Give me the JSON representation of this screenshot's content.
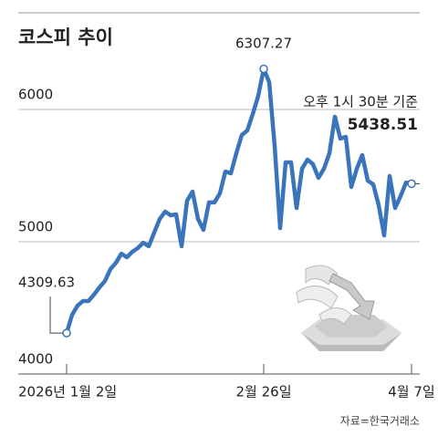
{
  "chart_data": {
    "type": "line",
    "title": "코스피 추이",
    "categories": [
      "2026년 1월 2일",
      null,
      null,
      null,
      null,
      null,
      null,
      null,
      null,
      null,
      null,
      null,
      null,
      null,
      null,
      null,
      null,
      null,
      null,
      null,
      null,
      null,
      null,
      null,
      null,
      null,
      null,
      null,
      null,
      null,
      null,
      null,
      null,
      null,
      null,
      null,
      "2월 26일",
      null,
      null,
      null,
      null,
      null,
      null,
      null,
      null,
      null,
      null,
      null,
      null,
      null,
      null,
      null,
      null,
      null,
      null,
      null,
      null,
      null,
      null,
      null,
      null,
      null,
      null,
      "4월 7일"
    ],
    "values": [
      4309.63,
      4448,
      4517,
      4552,
      4552,
      4600,
      4655,
      4703,
      4793,
      4841,
      4910,
      4883,
      4924,
      4952,
      4993,
      4966,
      5069,
      5172,
      5228,
      5200,
      5207,
      4966,
      5310,
      5379,
      5172,
      5090,
      5297,
      5297,
      5366,
      5531,
      5517,
      5669,
      5807,
      5841,
      5966,
      6103,
      6307.27,
      6207,
      5724,
      5103,
      5600,
      5600,
      5255,
      5552,
      5621,
      5586,
      5483,
      5552,
      5669,
      5945,
      5779,
      5793,
      5414,
      5552,
      5655,
      5462,
      5434,
      5276,
      5048,
      5497,
      5255,
      5345,
      5448,
      5438.51
    ],
    "color": "#3a74ba",
    "ylim": [
      4000,
      6500
    ],
    "yticks": [
      4000,
      5000,
      6000
    ],
    "grid": true,
    "annotation": "오후 1시 30분 기준",
    "source": "자료=한국거래소"
  }
}
